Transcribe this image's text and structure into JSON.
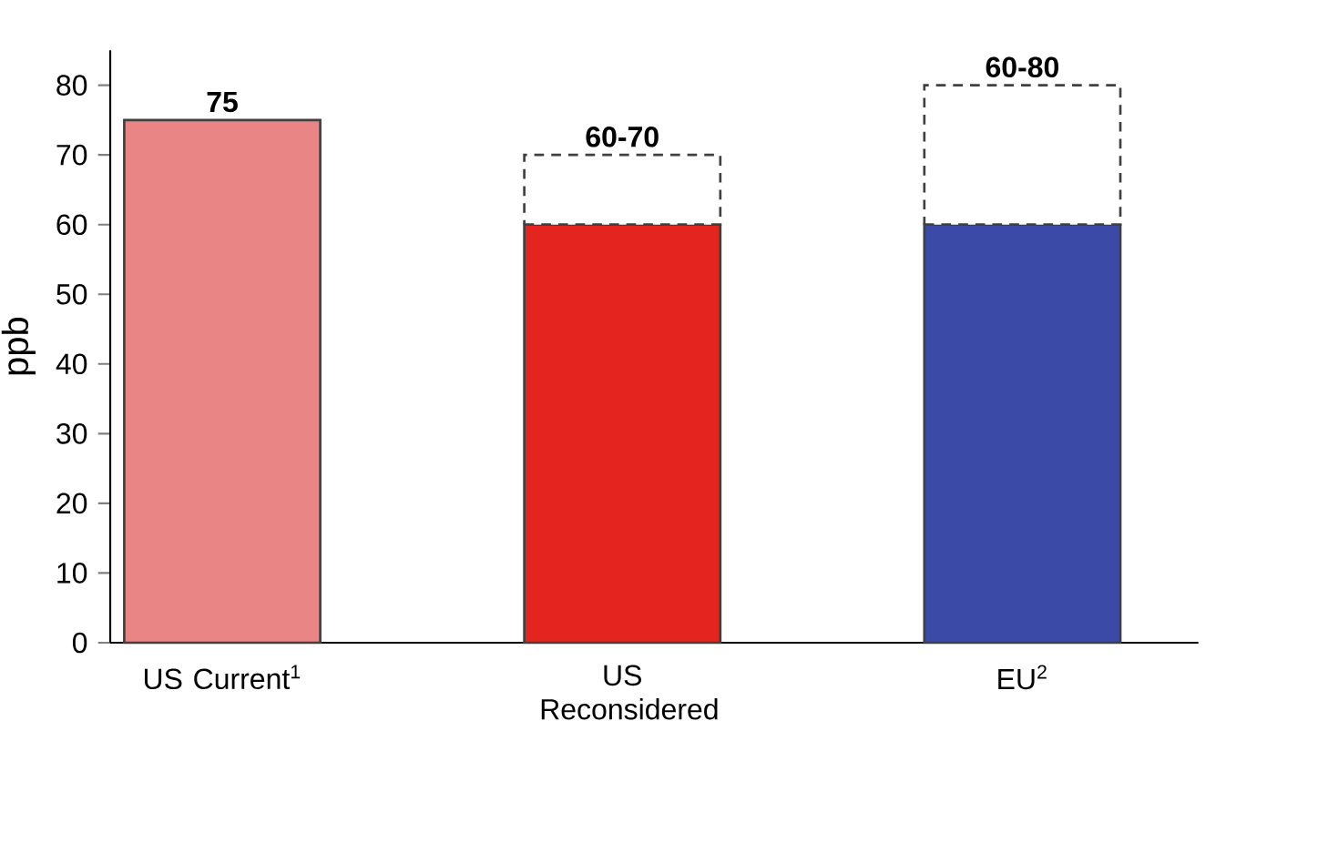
{
  "chart_data": {
    "type": "bar",
    "stacked": true,
    "ylabel": "ppb",
    "categories": [
      "US Current$^{1}$",
      "US Reconsidered",
      "EU$^{2}$"
    ],
    "series": [
      {
        "colors": [
          "#e98585",
          "#e3241f",
          "#3a4aa6"
        ],
        "values": [
          75,
          60,
          60
        ],
        "line_style": "solid"
      },
      {
        "color": "#ffffff",
        "values": [
          null,
          10,
          20
        ],
        "line_style": "dashed"
      }
    ],
    "totals": [
      "75",
      "60-70",
      "60-80"
    ],
    "ylim": [
      0,
      85
    ],
    "yticks": [
      0,
      10,
      20,
      30,
      40,
      50,
      60,
      70,
      80
    ]
  }
}
